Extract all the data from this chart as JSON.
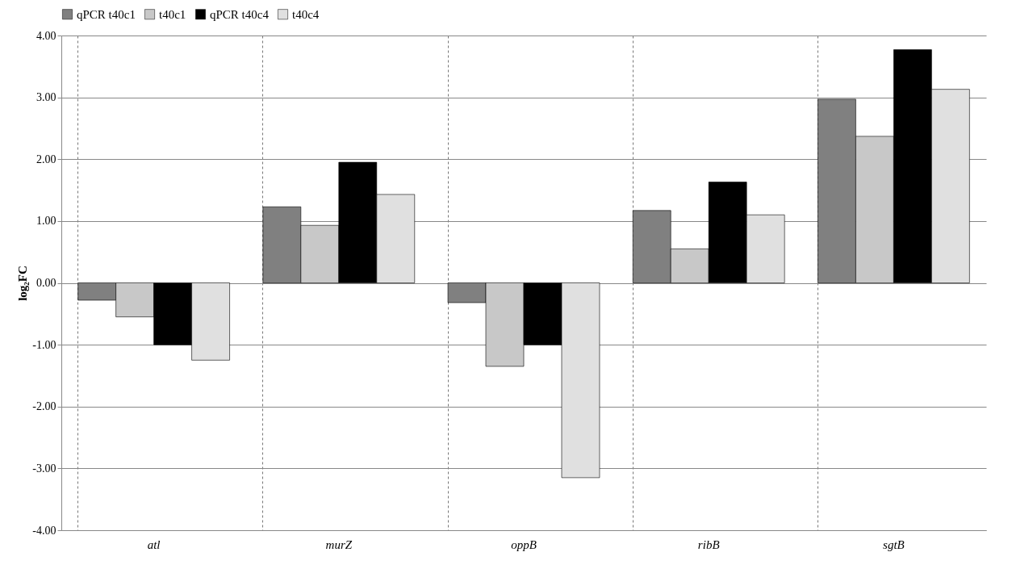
{
  "chart_data": {
    "type": "bar",
    "ylabel": "log₂FC",
    "categories": [
      "atl",
      "murZ",
      "oppB",
      "ribB",
      "sgtB"
    ],
    "series": [
      {
        "name": "qPCR t40c1",
        "color": "#808080",
        "values": [
          -0.28,
          1.23,
          -0.32,
          1.17,
          2.97
        ]
      },
      {
        "name": "t40c1",
        "color": "#c8c8c8",
        "values": [
          -0.55,
          0.93,
          -1.35,
          0.55,
          2.37
        ]
      },
      {
        "name": "qPCR t40c4",
        "color": "#000000",
        "values": [
          -1.0,
          1.95,
          -1.0,
          1.63,
          3.77
        ]
      },
      {
        "name": "t40c4",
        "color": "#e0e0e0",
        "values": [
          -1.25,
          1.43,
          -3.15,
          1.1,
          3.13
        ]
      }
    ],
    "ylim": [
      -4,
      4
    ],
    "yticks": [
      {
        "value": -4,
        "label": "-4.00"
      },
      {
        "value": -3,
        "label": "-3.00"
      },
      {
        "value": -2,
        "label": "-2.00"
      },
      {
        "value": -1,
        "label": "-1.00"
      },
      {
        "value": 0,
        "label": "0.00"
      },
      {
        "value": 1,
        "label": "1.00"
      },
      {
        "value": 2,
        "label": "2.00"
      },
      {
        "value": 3,
        "label": "3.00"
      },
      {
        "value": 4,
        "label": "4.00"
      }
    ],
    "grid": true,
    "legend": "top"
  }
}
